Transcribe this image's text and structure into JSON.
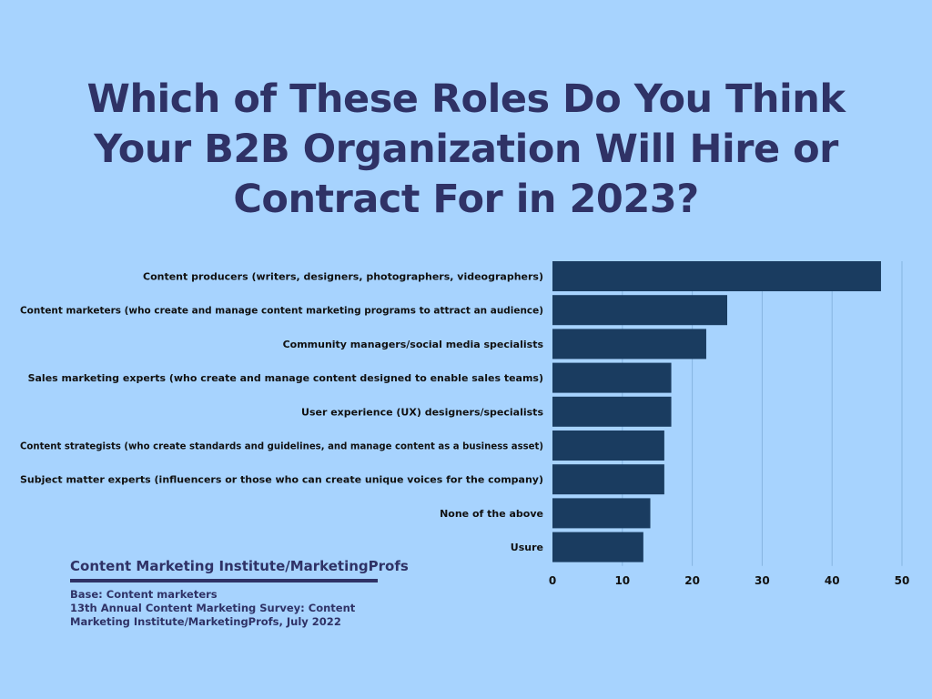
{
  "title": "Which of These Roles Do You Think Your B2B Organization Will Hire or Contract For in 2023?",
  "footer": {
    "source": "Content Marketing Institute/MarketingProfs",
    "base": "Base: Content marketers",
    "survey": "13th Annual Content Marketing Survey: Content Marketing Institute/MarketingProfs, July 2022"
  },
  "colors": {
    "background": "#a7d3fe",
    "bar": "#1a3c60",
    "title": "#2f3266",
    "grid": "#86b4e0"
  },
  "chart_data": {
    "type": "bar",
    "orientation": "horizontal",
    "categories": [
      "Content producers (writers, designers, photographers, videographers)",
      "Content marketers (who create and manage content marketing programs to attract an audience)",
      "Community managers/social media specialists",
      "Sales marketing experts (who create and manage content designed to enable sales teams)",
      "User experience (UX) designers/specialists",
      "Content strategists (who create standards and guidelines, and manage content as a business asset)",
      "Subject matter experts (influencers or those who can create unique voices for the company)",
      "None of the above",
      "Usure"
    ],
    "values": [
      47,
      25,
      22,
      17,
      17,
      16,
      16,
      14,
      13
    ],
    "xlim": [
      0,
      50
    ],
    "xticks": [
      0,
      10,
      20,
      30,
      40,
      50
    ],
    "grid": true,
    "legend": "none"
  }
}
